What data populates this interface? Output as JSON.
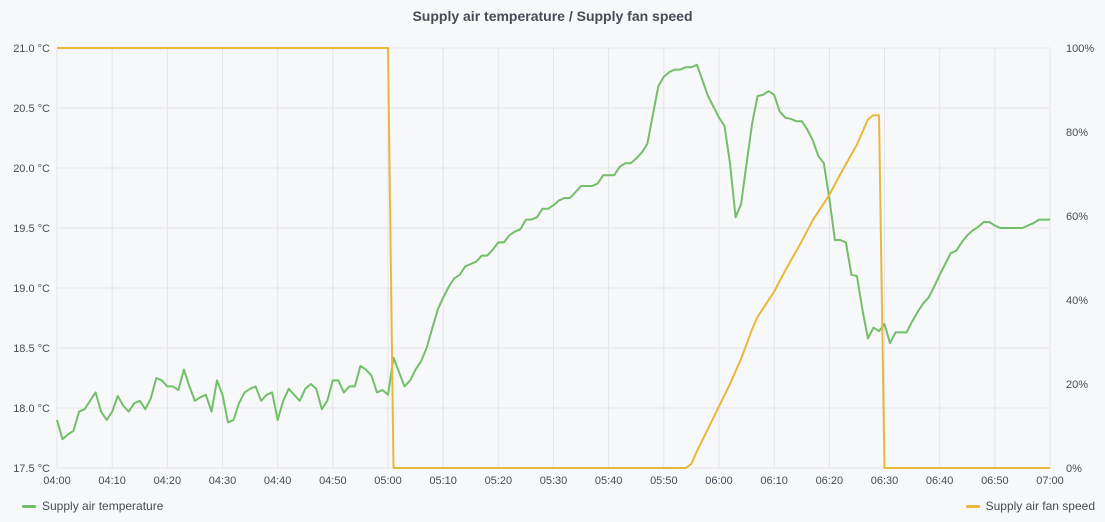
{
  "chart_data": {
    "type": "line",
    "title": "Supply air temperature / Supply fan speed",
    "x_ticks": [
      "04:00",
      "04:10",
      "04:20",
      "04:30",
      "04:40",
      "04:50",
      "05:00",
      "05:10",
      "05:20",
      "05:30",
      "05:40",
      "05:50",
      "06:00",
      "06:10",
      "06:20",
      "06:30",
      "06:40",
      "06:50",
      "07:00"
    ],
    "x_range_minutes": [
      0,
      180
    ],
    "y_left": {
      "unit": "°C",
      "ticks": [
        "17.5 °C",
        "18.0 °C",
        "18.5 °C",
        "19.0 °C",
        "19.5 °C",
        "20.0 °C",
        "20.5 °C",
        "21.0 °C"
      ],
      "range": [
        17.5,
        21.0
      ]
    },
    "y_right": {
      "unit": "%",
      "ticks": [
        "0%",
        "20%",
        "40%",
        "60%",
        "80%",
        "100%"
      ],
      "range": [
        0,
        100
      ]
    },
    "grid": true,
    "legend": "bottom",
    "series": [
      {
        "name": "Supply air temperature",
        "axis": "left",
        "color": "#73bf69",
        "points": [
          [
            0,
            17.9
          ],
          [
            1,
            17.74
          ],
          [
            2,
            17.78
          ],
          [
            3,
            17.81
          ],
          [
            4,
            17.97
          ],
          [
            5,
            17.99
          ],
          [
            6,
            18.06
          ],
          [
            7,
            18.13
          ],
          [
            8,
            17.97
          ],
          [
            9,
            17.9
          ],
          [
            10,
            17.97
          ],
          [
            11,
            18.1
          ],
          [
            12,
            18.02
          ],
          [
            13,
            17.97
          ],
          [
            14,
            18.04
          ],
          [
            15,
            18.06
          ],
          [
            16,
            17.99
          ],
          [
            17,
            18.08
          ],
          [
            18,
            18.25
          ],
          [
            19,
            18.23
          ],
          [
            20,
            18.18
          ],
          [
            21,
            18.18
          ],
          [
            22,
            18.15
          ],
          [
            23,
            18.32
          ],
          [
            24,
            18.18
          ],
          [
            25,
            18.06
          ],
          [
            26,
            18.09
          ],
          [
            27,
            18.11
          ],
          [
            28,
            17.97
          ],
          [
            29,
            18.23
          ],
          [
            30,
            18.11
          ],
          [
            31,
            17.88
          ],
          [
            32,
            17.9
          ],
          [
            33,
            18.04
          ],
          [
            34,
            18.13
          ],
          [
            35,
            18.16
          ],
          [
            36,
            18.18
          ],
          [
            37,
            18.06
          ],
          [
            38,
            18.11
          ],
          [
            39,
            18.13
          ],
          [
            40,
            17.9
          ],
          [
            41,
            18.06
          ],
          [
            42,
            18.16
          ],
          [
            43,
            18.11
          ],
          [
            44,
            18.06
          ],
          [
            45,
            18.16
          ],
          [
            46,
            18.2
          ],
          [
            47,
            18.16
          ],
          [
            48,
            17.99
          ],
          [
            49,
            18.06
          ],
          [
            50,
            18.23
          ],
          [
            51,
            18.23
          ],
          [
            52,
            18.13
          ],
          [
            53,
            18.18
          ],
          [
            54,
            18.18
          ],
          [
            55,
            18.35
          ],
          [
            56,
            18.32
          ],
          [
            57,
            18.27
          ],
          [
            58,
            18.13
          ],
          [
            59,
            18.15
          ],
          [
            60,
            18.11
          ],
          [
            61,
            18.42
          ],
          [
            62,
            18.3
          ],
          [
            63,
            18.18
          ],
          [
            64,
            18.23
          ],
          [
            65,
            18.32
          ],
          [
            66,
            18.39
          ],
          [
            67,
            18.5
          ],
          [
            68,
            18.66
          ],
          [
            69,
            18.82
          ],
          [
            70,
            18.92
          ],
          [
            71,
            19.01
          ],
          [
            72,
            19.08
          ],
          [
            73,
            19.11
          ],
          [
            74,
            19.18
          ],
          [
            75,
            19.2
          ],
          [
            76,
            19.22
          ],
          [
            77,
            19.27
          ],
          [
            78,
            19.27
          ],
          [
            79,
            19.32
          ],
          [
            80,
            19.38
          ],
          [
            81,
            19.38
          ],
          [
            82,
            19.44
          ],
          [
            83,
            19.47
          ],
          [
            84,
            19.49
          ],
          [
            85,
            19.57
          ],
          [
            86,
            19.57
          ],
          [
            87,
            19.59
          ],
          [
            88,
            19.66
          ],
          [
            89,
            19.66
          ],
          [
            90,
            19.69
          ],
          [
            91,
            19.73
          ],
          [
            92,
            19.75
          ],
          [
            93,
            19.75
          ],
          [
            94,
            19.8
          ],
          [
            95,
            19.85
          ],
          [
            96,
            19.85
          ],
          [
            97,
            19.85
          ],
          [
            98,
            19.87
          ],
          [
            99,
            19.94
          ],
          [
            100,
            19.94
          ],
          [
            101,
            19.94
          ],
          [
            102,
            20.01
          ],
          [
            103,
            20.04
          ],
          [
            104,
            20.04
          ],
          [
            105,
            20.08
          ],
          [
            106,
            20.13
          ],
          [
            107,
            20.2
          ],
          [
            108,
            20.44
          ],
          [
            109,
            20.68
          ],
          [
            110,
            20.76
          ],
          [
            111,
            20.8
          ],
          [
            112,
            20.82
          ],
          [
            113,
            20.82
          ],
          [
            114,
            20.84
          ],
          [
            115,
            20.84
          ],
          [
            116,
            20.86
          ],
          [
            117,
            20.73
          ],
          [
            118,
            20.6
          ],
          [
            119,
            20.51
          ],
          [
            120,
            20.42
          ],
          [
            121,
            20.35
          ],
          [
            122,
            20.04
          ],
          [
            123,
            19.59
          ],
          [
            124,
            19.7
          ],
          [
            125,
            20.04
          ],
          [
            126,
            20.37
          ],
          [
            127,
            20.6
          ],
          [
            128,
            20.61
          ],
          [
            129,
            20.64
          ],
          [
            130,
            20.61
          ],
          [
            131,
            20.47
          ],
          [
            132,
            20.42
          ],
          [
            133,
            20.41
          ],
          [
            134,
            20.39
          ],
          [
            135,
            20.39
          ],
          [
            136,
            20.32
          ],
          [
            137,
            20.23
          ],
          [
            138,
            20.1
          ],
          [
            139,
            20.04
          ],
          [
            140,
            19.75
          ],
          [
            141,
            19.4
          ],
          [
            142,
            19.4
          ],
          [
            143,
            19.38
          ],
          [
            144,
            19.11
          ],
          [
            145,
            19.1
          ],
          [
            146,
            18.82
          ],
          [
            147,
            18.58
          ],
          [
            148,
            18.67
          ],
          [
            149,
            18.64
          ],
          [
            150,
            18.7
          ],
          [
            151,
            18.54
          ],
          [
            152,
            18.63
          ],
          [
            153,
            18.63
          ],
          [
            154,
            18.63
          ],
          [
            155,
            18.72
          ],
          [
            156,
            18.8
          ],
          [
            157,
            18.87
          ],
          [
            158,
            18.92
          ],
          [
            159,
            19.01
          ],
          [
            160,
            19.11
          ],
          [
            161,
            19.2
          ],
          [
            162,
            19.29
          ],
          [
            163,
            19.31
          ],
          [
            164,
            19.38
          ],
          [
            165,
            19.44
          ],
          [
            166,
            19.48
          ],
          [
            167,
            19.51
          ],
          [
            168,
            19.55
          ],
          [
            169,
            19.55
          ],
          [
            170,
            19.52
          ],
          [
            171,
            19.5
          ],
          [
            172,
            19.5
          ],
          [
            173,
            19.5
          ],
          [
            174,
            19.5
          ],
          [
            175,
            19.5
          ],
          [
            176,
            19.52
          ],
          [
            177,
            19.54
          ],
          [
            178,
            19.57
          ],
          [
            179,
            19.57
          ],
          [
            180,
            19.57
          ]
        ]
      },
      {
        "name": "Supply air fan speed",
        "axis": "right",
        "color": "#eab839",
        "points": [
          [
            0,
            100
          ],
          [
            60,
            100
          ],
          [
            61,
            0
          ],
          [
            114,
            0
          ],
          [
            115,
            1
          ],
          [
            116,
            4
          ],
          [
            119,
            12
          ],
          [
            122,
            20
          ],
          [
            124,
            26
          ],
          [
            126,
            33
          ],
          [
            127,
            36
          ],
          [
            130,
            42
          ],
          [
            132,
            47
          ],
          [
            135,
            54
          ],
          [
            137,
            59
          ],
          [
            140,
            65
          ],
          [
            142,
            70
          ],
          [
            145,
            77
          ],
          [
            147,
            83
          ],
          [
            148,
            84
          ],
          [
            149,
            84
          ],
          [
            150,
            0
          ],
          [
            180,
            0
          ]
        ]
      }
    ]
  }
}
